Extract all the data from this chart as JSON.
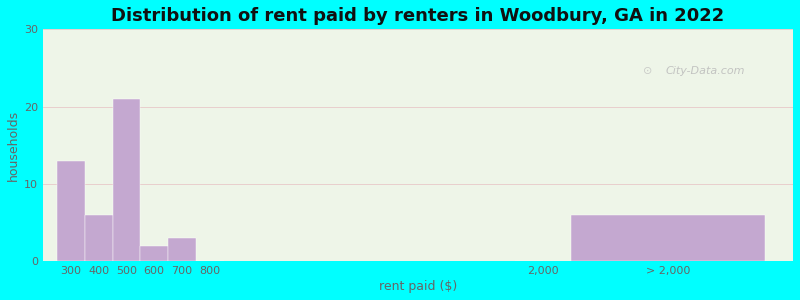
{
  "title": "Distribution of rent paid by renters in Woodbury, GA in 2022",
  "xlabel": "rent paid ($)",
  "ylabel": "households",
  "bar_labels": [
    "300",
    "400",
    "500",
    "600",
    "700",
    "800",
    "2,000",
    "> 2,000"
  ],
  "bar_left_edges": [
    250,
    350,
    450,
    550,
    650,
    750,
    1900,
    2100
  ],
  "bar_widths": [
    100,
    100,
    100,
    100,
    100,
    100,
    100,
    700
  ],
  "bar_heights": [
    13,
    6,
    21,
    2,
    3,
    0,
    0,
    6
  ],
  "bar_color": "#c4a8d0",
  "ylim": [
    0,
    30
  ],
  "yticks": [
    0,
    10,
    20,
    30
  ],
  "xtick_positions": [
    300,
    400,
    500,
    600,
    700,
    800,
    2000,
    2450
  ],
  "xtick_labels": [
    "300",
    "400",
    "500",
    "600",
    "700",
    "800",
    "2,000",
    "> 2,000"
  ],
  "xlim": [
    200,
    2900
  ],
  "background_outer": "#00ffff",
  "background_inner": "#eef5e8",
  "title_fontsize": 13,
  "axis_label_fontsize": 9,
  "tick_label_fontsize": 8,
  "watermark": "City-Data.com"
}
